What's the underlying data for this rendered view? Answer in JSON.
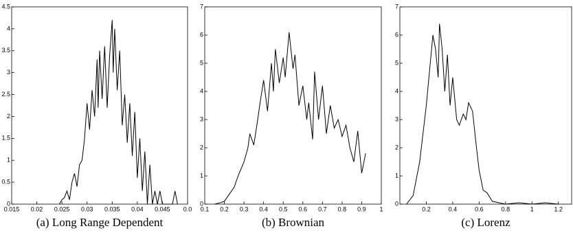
{
  "chart_data": [
    {
      "type": "line",
      "title": "(a) Long Range Dependent",
      "x": [
        0.0245,
        0.025,
        0.0255,
        0.026,
        0.0265,
        0.027,
        0.0275,
        0.028,
        0.0285,
        0.029,
        0.0295,
        0.03,
        0.0305,
        0.031,
        0.0315,
        0.032,
        0.0322,
        0.0325,
        0.033,
        0.0335,
        0.034,
        0.0345,
        0.035,
        0.0352,
        0.0355,
        0.036,
        0.0365,
        0.037,
        0.0375,
        0.038,
        0.0385,
        0.039,
        0.0395,
        0.04,
        0.0405,
        0.041,
        0.0415,
        0.042,
        0.0425,
        0.043,
        0.0435,
        0.044,
        0.0445,
        0.045,
        0.047,
        0.0475,
        0.048
      ],
      "series": [
        {
          "color": "#000000",
          "values": [
            0,
            0.1,
            0.15,
            0.3,
            0.1,
            0.5,
            0.7,
            0.4,
            0.9,
            1.0,
            1.5,
            2.3,
            1.7,
            2.6,
            2.0,
            3.3,
            2.2,
            3.5,
            2.4,
            3.6,
            2.2,
            3.4,
            4.2,
            3.0,
            4.0,
            2.6,
            3.5,
            1.8,
            2.5,
            1.4,
            2.3,
            1.1,
            2.1,
            0.6,
            1.5,
            0.3,
            1.2,
            0,
            0.9,
            0,
            0.3,
            0,
            0.3,
            0,
            0,
            0.3,
            0
          ]
        }
      ],
      "xlim": [
        0.015,
        0.05
      ],
      "xticks": [
        0.015,
        0.02,
        0.025,
        0.03,
        0.035,
        0.04,
        0.045,
        {
          "value": 0.05,
          "label": "0.0"
        }
      ],
      "ylim": [
        0,
        4.5
      ],
      "yticks": [
        0,
        0.5,
        1,
        1.5,
        2,
        2.5,
        3,
        3.5,
        4,
        4.5
      ]
    },
    {
      "type": "line",
      "title": "(b) Brownian",
      "x": [
        0.15,
        0.18,
        0.2,
        0.22,
        0.25,
        0.27,
        0.3,
        0.32,
        0.33,
        0.35,
        0.37,
        0.38,
        0.4,
        0.42,
        0.44,
        0.45,
        0.46,
        0.48,
        0.5,
        0.51,
        0.53,
        0.55,
        0.56,
        0.58,
        0.6,
        0.62,
        0.63,
        0.65,
        0.66,
        0.68,
        0.7,
        0.72,
        0.74,
        0.76,
        0.78,
        0.8,
        0.82,
        0.84,
        0.86,
        0.88,
        0.9,
        0.92
      ],
      "series": [
        {
          "color": "#000000",
          "values": [
            0,
            0.05,
            0.1,
            0.3,
            0.6,
            1.0,
            1.5,
            2.0,
            2.5,
            2.1,
            3.0,
            3.5,
            4.4,
            3.3,
            5.0,
            4.0,
            5.5,
            4.3,
            5.2,
            4.5,
            6.1,
            4.8,
            5.3,
            3.5,
            4.2,
            3.0,
            3.6,
            2.3,
            4.7,
            3.0,
            4.2,
            2.5,
            3.5,
            2.7,
            3.0,
            2.4,
            2.8,
            2.0,
            1.5,
            2.6,
            1.1,
            1.8
          ]
        }
      ],
      "xlim": [
        0.1,
        1
      ],
      "xticks": [
        0.1,
        0.2,
        0.3,
        0.4,
        0.5,
        0.6,
        0.7,
        0.8,
        0.9,
        1
      ],
      "ylim": [
        0,
        7
      ],
      "yticks": [
        0,
        1,
        2,
        3,
        4,
        5,
        6,
        7
      ]
    },
    {
      "type": "line",
      "title": "(c) Lorenz",
      "x": [
        0.05,
        0.1,
        0.15,
        0.2,
        0.23,
        0.25,
        0.27,
        0.29,
        0.3,
        0.32,
        0.34,
        0.36,
        0.38,
        0.4,
        0.43,
        0.45,
        0.48,
        0.5,
        0.52,
        0.55,
        0.58,
        0.6,
        0.63,
        0.66,
        0.7,
        0.75,
        0.8,
        0.9,
        1.0,
        1.1,
        1.2
      ],
      "series": [
        {
          "color": "#000000",
          "values": [
            0,
            0.3,
            1.5,
            3.5,
            5.0,
            6.0,
            5.5,
            4.5,
            6.4,
            5.5,
            4.0,
            5.3,
            3.5,
            4.5,
            3.0,
            2.8,
            3.2,
            3.0,
            3.6,
            3.3,
            2.0,
            1.2,
            0.5,
            0.4,
            0.1,
            0.05,
            0,
            0.05,
            0,
            0.05,
            0
          ]
        }
      ],
      "xlim": [
        0,
        1.3
      ],
      "xticks": [
        0.2,
        0.4,
        0.6,
        0.8,
        1,
        1.2
      ],
      "ylim": [
        0,
        7
      ],
      "yticks": [
        0,
        1,
        2,
        3,
        4,
        5,
        6,
        7
      ]
    }
  ]
}
